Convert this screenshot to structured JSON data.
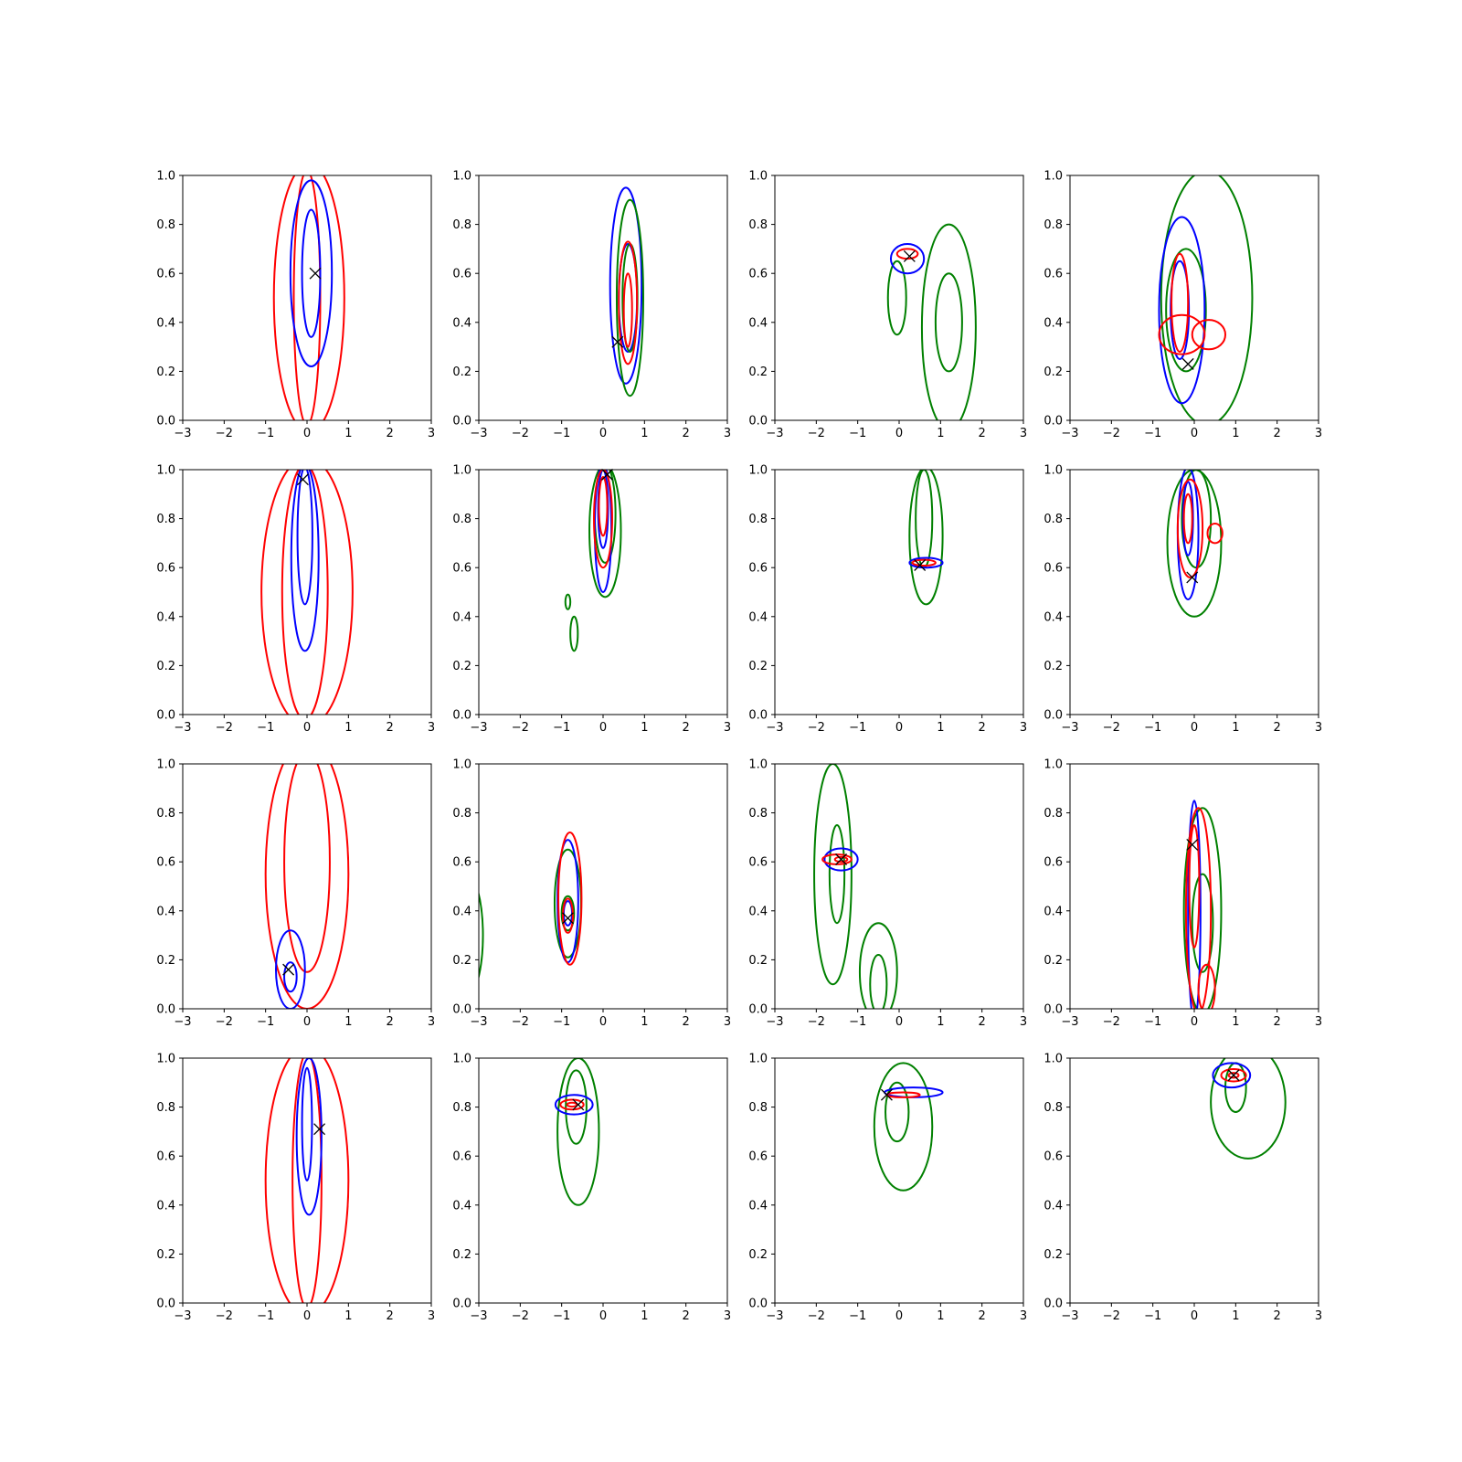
{
  "chart_data": {
    "type": "contour",
    "layout": {
      "rows": 4,
      "cols": 4
    },
    "xlim": [
      -3,
      3
    ],
    "ylim": [
      0,
      1
    ],
    "xticks": [
      -3,
      -2,
      -1,
      0,
      1,
      2,
      3
    ],
    "yticks": [
      0.0,
      0.2,
      0.4,
      0.6,
      0.8,
      1.0
    ],
    "xtick_labels": [
      "−3",
      "−2",
      "−1",
      "0",
      "1",
      "2",
      "3"
    ],
    "ytick_labels": [
      "0.0",
      "0.2",
      "0.4",
      "0.6",
      "0.8",
      "1.0"
    ],
    "colors": {
      "red": "#ff0000",
      "blue": "#0000ff",
      "green": "#008000",
      "marker": "#000000"
    },
    "panels": [
      {
        "marker": [
          0.2,
          0.6
        ],
        "contours": [
          {
            "color": "red",
            "levels": [
              {
                "cx": 0.05,
                "cy": 0.5,
                "rx": 0.85,
                "ry": 0.55
              },
              {
                "cx": 0.0,
                "cy": 0.5,
                "rx": 0.32,
                "ry": 0.52
              }
            ]
          },
          {
            "color": "blue",
            "levels": [
              {
                "cx": 0.1,
                "cy": 0.6,
                "rx": 0.5,
                "ry": 0.38
              },
              {
                "cx": 0.1,
                "cy": 0.6,
                "rx": 0.22,
                "ry": 0.26
              }
            ]
          }
        ]
      },
      {
        "marker": [
          0.35,
          0.32
        ],
        "contours": [
          {
            "color": "blue",
            "levels": [
              {
                "cx": 0.55,
                "cy": 0.55,
                "rx": 0.38,
                "ry": 0.4
              },
              {
                "cx": 0.6,
                "cy": 0.5,
                "rx": 0.22,
                "ry": 0.22
              }
            ]
          },
          {
            "color": "green",
            "levels": [
              {
                "cx": 0.65,
                "cy": 0.5,
                "rx": 0.32,
                "ry": 0.4
              },
              {
                "cx": 0.65,
                "cy": 0.5,
                "rx": 0.18,
                "ry": 0.22
              }
            ]
          },
          {
            "color": "red",
            "levels": [
              {
                "cx": 0.6,
                "cy": 0.48,
                "rx": 0.22,
                "ry": 0.25
              },
              {
                "cx": 0.6,
                "cy": 0.45,
                "rx": 0.1,
                "ry": 0.15
              }
            ]
          }
        ]
      },
      {
        "marker": [
          0.25,
          0.67
        ],
        "contours": [
          {
            "color": "green",
            "levels": [
              {
                "cx": 1.2,
                "cy": 0.38,
                "rx": 0.65,
                "ry": 0.42
              },
              {
                "cx": 1.2,
                "cy": 0.4,
                "rx": 0.32,
                "ry": 0.2
              },
              {
                "cx": -0.05,
                "cy": 0.5,
                "rx": 0.22,
                "ry": 0.15
              }
            ]
          },
          {
            "color": "blue",
            "levels": [
              {
                "cx": 0.2,
                "cy": 0.66,
                "rx": 0.4,
                "ry": 0.06
              }
            ]
          },
          {
            "color": "red",
            "levels": [
              {
                "cx": 0.2,
                "cy": 0.68,
                "rx": 0.25,
                "ry": 0.02
              }
            ]
          }
        ]
      },
      {
        "marker": [
          -0.15,
          0.23
        ],
        "contours": [
          {
            "color": "green",
            "levels": [
              {
                "cx": 0.3,
                "cy": 0.5,
                "rx": 1.1,
                "ry": 0.52
              },
              {
                "cx": -0.2,
                "cy": 0.45,
                "rx": 0.48,
                "ry": 0.25
              }
            ]
          },
          {
            "color": "blue",
            "levels": [
              {
                "cx": -0.3,
                "cy": 0.45,
                "rx": 0.55,
                "ry": 0.38
              },
              {
                "cx": -0.35,
                "cy": 0.45,
                "rx": 0.22,
                "ry": 0.2
              }
            ]
          },
          {
            "color": "red",
            "levels": [
              {
                "cx": -0.3,
                "cy": 0.35,
                "rx": 0.55,
                "ry": 0.08
              },
              {
                "cx": 0.35,
                "cy": 0.35,
                "rx": 0.4,
                "ry": 0.06
              },
              {
                "cx": -0.35,
                "cy": 0.48,
                "rx": 0.2,
                "ry": 0.2
              }
            ]
          }
        ]
      },
      {
        "marker": [
          -0.1,
          0.96
        ],
        "contours": [
          {
            "color": "red",
            "levels": [
              {
                "cx": 0.0,
                "cy": 0.5,
                "rx": 1.1,
                "ry": 0.55
              },
              {
                "cx": -0.05,
                "cy": 0.5,
                "rx": 0.55,
                "ry": 0.52
              }
            ]
          },
          {
            "color": "blue",
            "levels": [
              {
                "cx": -0.05,
                "cy": 0.64,
                "rx": 0.33,
                "ry": 0.38
              },
              {
                "cx": -0.05,
                "cy": 0.73,
                "rx": 0.18,
                "ry": 0.28
              }
            ]
          }
        ]
      },
      {
        "marker": [
          0.1,
          0.98
        ],
        "contours": [
          {
            "color": "green",
            "levels": [
              {
                "cx": 0.05,
                "cy": 0.75,
                "rx": 0.38,
                "ry": 0.27
              },
              {
                "cx": 0.05,
                "cy": 0.82,
                "rx": 0.25,
                "ry": 0.2
              },
              {
                "cx": -0.85,
                "cy": 0.46,
                "rx": 0.06,
                "ry": 0.03
              },
              {
                "cx": -0.7,
                "cy": 0.33,
                "rx": 0.09,
                "ry": 0.07
              }
            ]
          },
          {
            "color": "blue",
            "levels": [
              {
                "cx": 0.0,
                "cy": 0.76,
                "rx": 0.2,
                "ry": 0.26
              },
              {
                "cx": 0.0,
                "cy": 0.84,
                "rx": 0.12,
                "ry": 0.16
              }
            ]
          },
          {
            "color": "red",
            "levels": [
              {
                "cx": 0.0,
                "cy": 0.8,
                "rx": 0.22,
                "ry": 0.2
              },
              {
                "cx": 0.0,
                "cy": 0.85,
                "rx": 0.1,
                "ry": 0.12
              }
            ]
          }
        ]
      },
      {
        "marker": [
          0.5,
          0.61
        ],
        "contours": [
          {
            "color": "green",
            "levels": [
              {
                "cx": 0.65,
                "cy": 0.73,
                "rx": 0.4,
                "ry": 0.28
              },
              {
                "cx": 0.6,
                "cy": 0.8,
                "rx": 0.2,
                "ry": 0.2
              }
            ]
          },
          {
            "color": "blue",
            "levels": [
              {
                "cx": 0.65,
                "cy": 0.62,
                "rx": 0.4,
                "ry": 0.02
              }
            ]
          },
          {
            "color": "red",
            "levels": [
              {
                "cx": 0.6,
                "cy": 0.62,
                "rx": 0.28,
                "ry": 0.012
              }
            ]
          }
        ]
      },
      {
        "marker": [
          -0.05,
          0.56
        ],
        "contours": [
          {
            "color": "green",
            "levels": [
              {
                "cx": 0.0,
                "cy": 0.7,
                "rx": 0.65,
                "ry": 0.3
              },
              {
                "cx": 0.05,
                "cy": 0.8,
                "rx": 0.35,
                "ry": 0.2
              }
            ]
          },
          {
            "color": "blue",
            "levels": [
              {
                "cx": -0.15,
                "cy": 0.74,
                "rx": 0.25,
                "ry": 0.27
              },
              {
                "cx": -0.15,
                "cy": 0.8,
                "rx": 0.12,
                "ry": 0.15
              }
            ]
          },
          {
            "color": "red",
            "levels": [
              {
                "cx": -0.1,
                "cy": 0.76,
                "rx": 0.3,
                "ry": 0.2
              },
              {
                "cx": 0.5,
                "cy": 0.74,
                "rx": 0.18,
                "ry": 0.04
              },
              {
                "cx": -0.15,
                "cy": 0.8,
                "rx": 0.1,
                "ry": 0.1
              }
            ]
          }
        ]
      },
      {
        "marker": [
          -0.45,
          0.16
        ],
        "contours": [
          {
            "color": "red",
            "levels": [
              {
                "cx": 0.0,
                "cy": 0.55,
                "rx": 1.0,
                "ry": 0.55
              },
              {
                "cx": 0.0,
                "cy": 0.6,
                "rx": 0.55,
                "ry": 0.45
              }
            ]
          },
          {
            "color": "blue",
            "levels": [
              {
                "cx": -0.4,
                "cy": 0.16,
                "rx": 0.35,
                "ry": 0.16
              },
              {
                "cx": -0.4,
                "cy": 0.13,
                "rx": 0.15,
                "ry": 0.06
              }
            ]
          }
        ]
      },
      {
        "marker": [
          -0.85,
          0.37
        ],
        "contours": [
          {
            "color": "green",
            "levels": [
              {
                "cx": -3.5,
                "cy": 0.3,
                "rx": 0.6,
                "ry": 0.3
              },
              {
                "cx": -0.85,
                "cy": 0.43,
                "rx": 0.32,
                "ry": 0.22
              },
              {
                "cx": -0.85,
                "cy": 0.39,
                "rx": 0.15,
                "ry": 0.07
              }
            ]
          },
          {
            "color": "blue",
            "levels": [
              {
                "cx": -0.85,
                "cy": 0.44,
                "rx": 0.25,
                "ry": 0.25
              },
              {
                "cx": -0.85,
                "cy": 0.39,
                "rx": 0.1,
                "ry": 0.05
              }
            ]
          },
          {
            "color": "red",
            "levels": [
              {
                "cx": -0.8,
                "cy": 0.45,
                "rx": 0.28,
                "ry": 0.27
              },
              {
                "cx": -0.85,
                "cy": 0.38,
                "rx": 0.12,
                "ry": 0.07
              }
            ]
          }
        ]
      },
      {
        "marker": [
          -1.4,
          0.61
        ],
        "contours": [
          {
            "color": "green",
            "levels": [
              {
                "cx": -1.6,
                "cy": 0.55,
                "rx": 0.45,
                "ry": 0.45
              },
              {
                "cx": -1.5,
                "cy": 0.55,
                "rx": 0.18,
                "ry": 0.2
              },
              {
                "cx": -0.5,
                "cy": 0.15,
                "rx": 0.45,
                "ry": 0.2
              },
              {
                "cx": -0.5,
                "cy": 0.1,
                "rx": 0.2,
                "ry": 0.12
              }
            ]
          },
          {
            "color": "blue",
            "levels": [
              {
                "cx": -1.4,
                "cy": 0.61,
                "rx": 0.4,
                "ry": 0.045
              }
            ]
          },
          {
            "color": "red",
            "levels": [
              {
                "cx": -1.5,
                "cy": 0.61,
                "rx": 0.35,
                "ry": 0.02
              },
              {
                "cx": -1.4,
                "cy": 0.61,
                "rx": 0.15,
                "ry": 0.01
              }
            ]
          }
        ]
      },
      {
        "marker": [
          -0.05,
          0.67
        ],
        "contours": [
          {
            "color": "green",
            "levels": [
              {
                "cx": 0.2,
                "cy": 0.4,
                "rx": 0.45,
                "ry": 0.42
              },
              {
                "cx": 0.2,
                "cy": 0.35,
                "rx": 0.25,
                "ry": 0.2
              }
            ]
          },
          {
            "color": "blue",
            "levels": [
              {
                "cx": 0.0,
                "cy": 0.4,
                "rx": 0.15,
                "ry": 0.45
              }
            ]
          },
          {
            "color": "red",
            "levels": [
              {
                "cx": 0.1,
                "cy": 0.4,
                "rx": 0.3,
                "ry": 0.42
              },
              {
                "cx": 0.0,
                "cy": 0.5,
                "rx": 0.12,
                "ry": 0.25
              },
              {
                "cx": 0.3,
                "cy": 0.08,
                "rx": 0.2,
                "ry": 0.1
              }
            ]
          }
        ]
      },
      {
        "marker": [
          0.3,
          0.71
        ],
        "contours": [
          {
            "color": "red",
            "levels": [
              {
                "cx": 0.0,
                "cy": 0.5,
                "rx": 1.0,
                "ry": 0.55
              },
              {
                "cx": 0.0,
                "cy": 0.5,
                "rx": 0.35,
                "ry": 0.52
              }
            ]
          },
          {
            "color": "blue",
            "levels": [
              {
                "cx": 0.05,
                "cy": 0.68,
                "rx": 0.3,
                "ry": 0.32
              },
              {
                "cx": 0.0,
                "cy": 0.73,
                "rx": 0.12,
                "ry": 0.23
              }
            ]
          }
        ]
      },
      {
        "marker": [
          -0.6,
          0.81
        ],
        "contours": [
          {
            "color": "green",
            "levels": [
              {
                "cx": -0.6,
                "cy": 0.7,
                "rx": 0.5,
                "ry": 0.3
              },
              {
                "cx": -0.65,
                "cy": 0.8,
                "rx": 0.25,
                "ry": 0.15
              }
            ]
          },
          {
            "color": "blue",
            "levels": [
              {
                "cx": -0.7,
                "cy": 0.81,
                "rx": 0.45,
                "ry": 0.04
              }
            ]
          },
          {
            "color": "red",
            "levels": [
              {
                "cx": -0.75,
                "cy": 0.81,
                "rx": 0.28,
                "ry": 0.02
              },
              {
                "cx": -0.75,
                "cy": 0.81,
                "rx": 0.12,
                "ry": 0.008
              }
            ]
          }
        ]
      },
      {
        "marker": [
          -0.3,
          0.85
        ],
        "contours": [
          {
            "color": "green",
            "levels": [
              {
                "cx": 0.1,
                "cy": 0.72,
                "rx": 0.7,
                "ry": 0.26
              },
              {
                "cx": -0.05,
                "cy": 0.78,
                "rx": 0.28,
                "ry": 0.12
              }
            ]
          },
          {
            "color": "blue",
            "levels": [
              {
                "cx": 0.35,
                "cy": 0.86,
                "rx": 0.7,
                "ry": 0.02
              }
            ]
          },
          {
            "color": "red",
            "levels": [
              {
                "cx": 0.1,
                "cy": 0.85,
                "rx": 0.4,
                "ry": 0.01
              }
            ]
          }
        ]
      },
      {
        "marker": [
          0.95,
          0.93
        ],
        "contours": [
          {
            "color": "green",
            "levels": [
              {
                "cx": 1.3,
                "cy": 0.82,
                "rx": 0.9,
                "ry": 0.23
              },
              {
                "cx": 1.0,
                "cy": 0.88,
                "rx": 0.25,
                "ry": 0.1
              }
            ]
          },
          {
            "color": "blue",
            "levels": [
              {
                "cx": 0.9,
                "cy": 0.93,
                "rx": 0.45,
                "ry": 0.05
              }
            ]
          },
          {
            "color": "red",
            "levels": [
              {
                "cx": 0.95,
                "cy": 0.93,
                "rx": 0.3,
                "ry": 0.025
              },
              {
                "cx": 0.95,
                "cy": 0.93,
                "rx": 0.12,
                "ry": 0.01
              }
            ]
          }
        ]
      }
    ]
  }
}
